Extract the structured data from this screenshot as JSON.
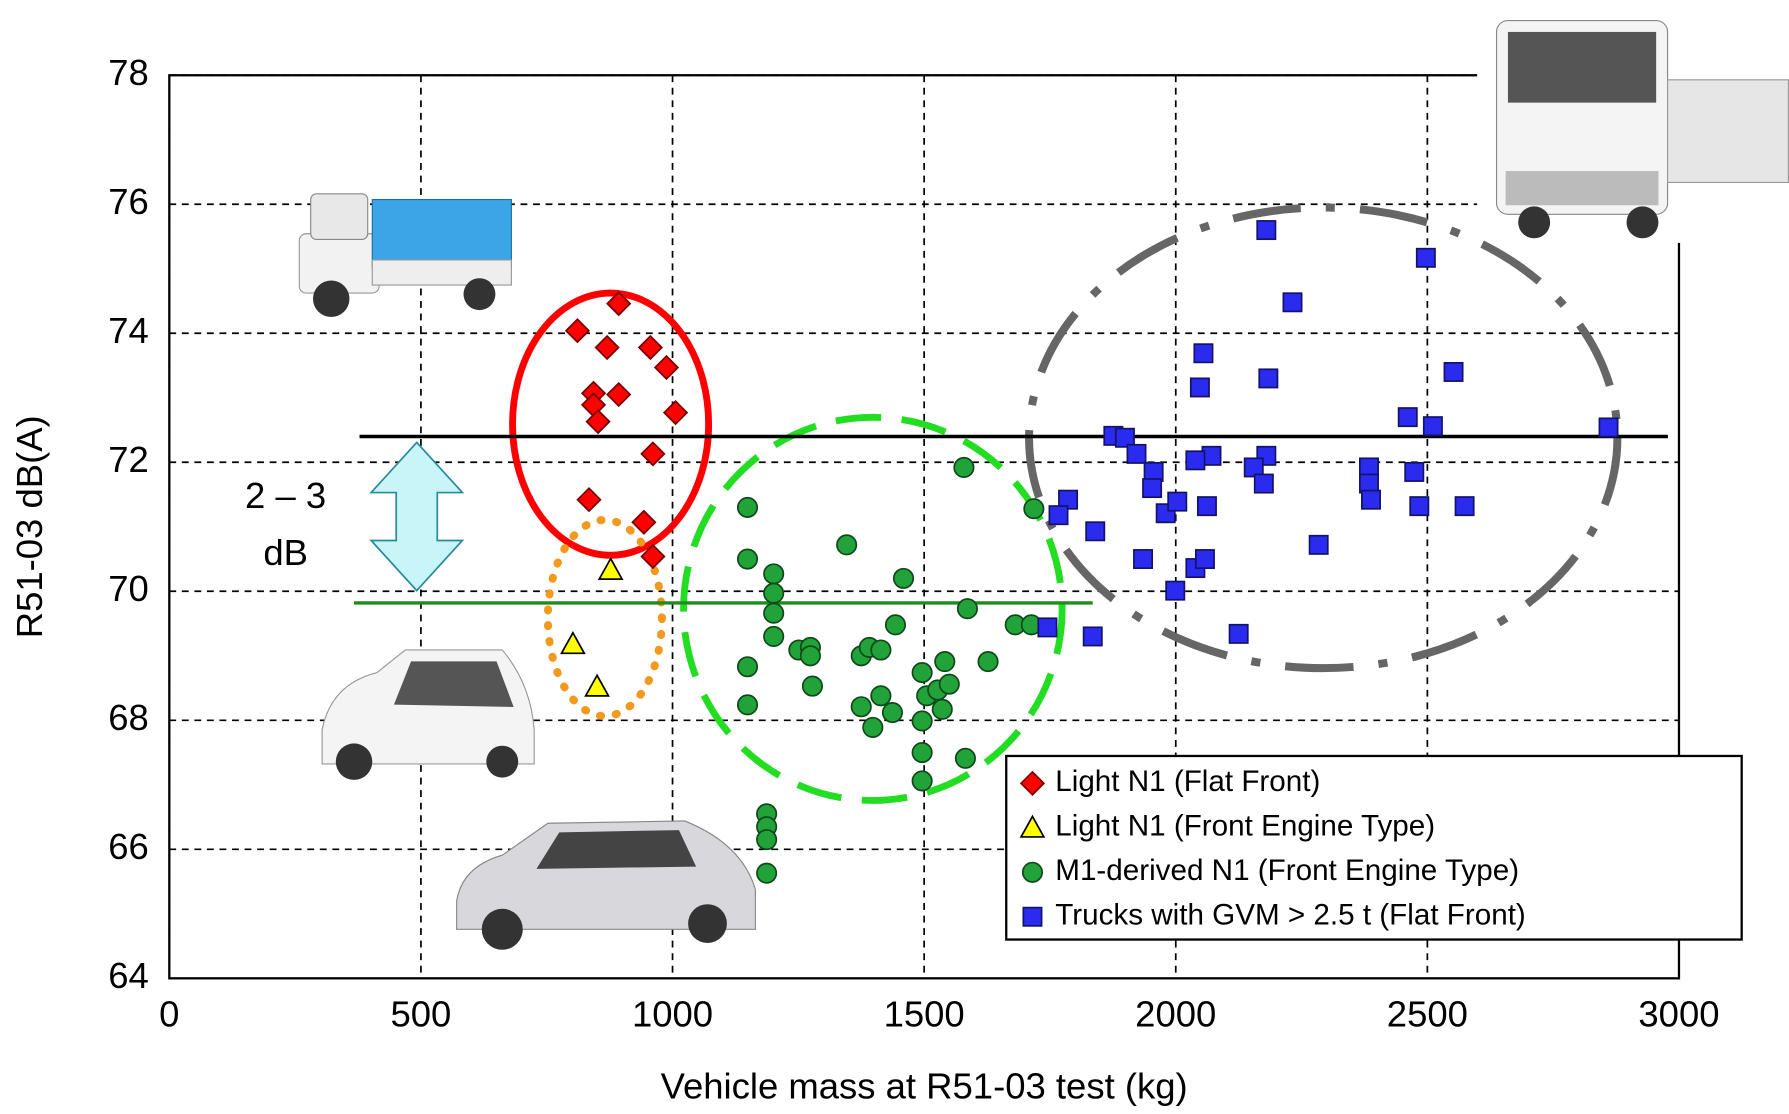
{
  "chart_data": {
    "type": "scatter",
    "x_label": "Vehicle mass at R51-03 test (kg)",
    "y_label": "R51-03 dB(A)",
    "xlim": [
      0,
      3000
    ],
    "xticks": [
      0,
      500,
      1000,
      1500,
      2000,
      2500,
      3000
    ],
    "ylim": [
      64,
      78
    ],
    "yticks": [
      64,
      66,
      68,
      70,
      72,
      74,
      76,
      78
    ],
    "grid": true,
    "legend": "lower right",
    "annotation": [
      "2 – 3",
      "dB"
    ],
    "reference_lines": [
      {
        "y": 72.4,
        "x": [
          378,
          2978
        ],
        "color": "#000000"
      },
      {
        "y": 69.82,
        "x": [
          367,
          1835
        ],
        "color": "#1e8c1e"
      }
    ],
    "series": [
      {
        "name": "Light N1 (Flat Front)",
        "marker": "diamond",
        "color": "#ff0000",
        "x": [
          811,
          893,
          870,
          956,
          988,
          843,
          843,
          893,
          1006,
          852,
          961,
          834,
          943,
          961
        ],
        "values": [
          74.04,
          74.46,
          73.78,
          73.78,
          73.47,
          73.07,
          72.89,
          73.05,
          72.77,
          72.63,
          72.13,
          71.42,
          71.07,
          70.54
        ]
      },
      {
        "name": "Light N1 (Front Engine Type)",
        "marker": "triangle",
        "color": "#ffff00",
        "x": [
          877,
          802,
          850
        ],
        "values": [
          70.33,
          69.18,
          68.52
        ]
      },
      {
        "name": "M1-derived N1 (Front Engine Type)",
        "marker": "circle",
        "color": "#22a33a",
        "x": [
          1149,
          1149,
          1201,
          1201,
          1201,
          1201,
          1149,
          1149,
          1251,
          1274,
          1274,
          1278,
          1346,
          1459,
          1375,
          1391,
          1414,
          1443,
          1375,
          1398,
          1414,
          1437,
          1496,
          1496,
          1496,
          1496,
          1505,
          1527,
          1541,
          1536,
          1550,
          1579,
          1586,
          1627,
          1582,
          1681,
          1713,
          1718,
          1187,
          1187,
          1187,
          1187
        ],
        "values": [
          71.3,
          70.5,
          70.27,
          69.97,
          69.66,
          69.3,
          68.83,
          68.24,
          69.09,
          69.13,
          69.0,
          68.53,
          70.72,
          70.2,
          69.0,
          69.13,
          69.09,
          69.48,
          68.21,
          67.89,
          68.38,
          68.12,
          68.74,
          67.99,
          67.5,
          67.06,
          68.38,
          68.47,
          68.91,
          68.17,
          68.56,
          71.92,
          69.73,
          68.91,
          67.41,
          69.48,
          69.48,
          71.28,
          66.55,
          66.35,
          66.15,
          65.63
        ]
      },
      {
        "name": "Trucks with GVM > 2.5 t (Flat Front)",
        "marker": "square",
        "color": "#2b2bf0",
        "x": [
          2180,
          2497,
          2232,
          2055,
          2552,
          2184,
          2048,
          2461,
          2511,
          2860,
          1876,
          1899,
          1922,
          1956,
          2071,
          2039,
          2180,
          2155,
          2175,
          2384,
          2384,
          2388,
          1953,
          1980,
          2003,
          2062,
          2474,
          2484,
          2574,
          1786,
          1767,
          1745,
          1840,
          1935,
          2039,
          2058,
          1999,
          2284,
          1835,
          2125
        ],
        "values": [
          75.6,
          75.17,
          74.48,
          73.69,
          73.4,
          73.3,
          73.16,
          72.7,
          72.56,
          72.54,
          72.41,
          72.38,
          72.13,
          71.85,
          72.1,
          72.03,
          72.1,
          71.92,
          71.67,
          71.92,
          71.67,
          71.42,
          71.6,
          71.21,
          71.39,
          71.32,
          71.85,
          71.32,
          71.32,
          71.42,
          71.18,
          69.44,
          70.93,
          70.5,
          70.36,
          70.5,
          70.01,
          70.72,
          69.3,
          69.34
        ]
      }
    ]
  }
}
